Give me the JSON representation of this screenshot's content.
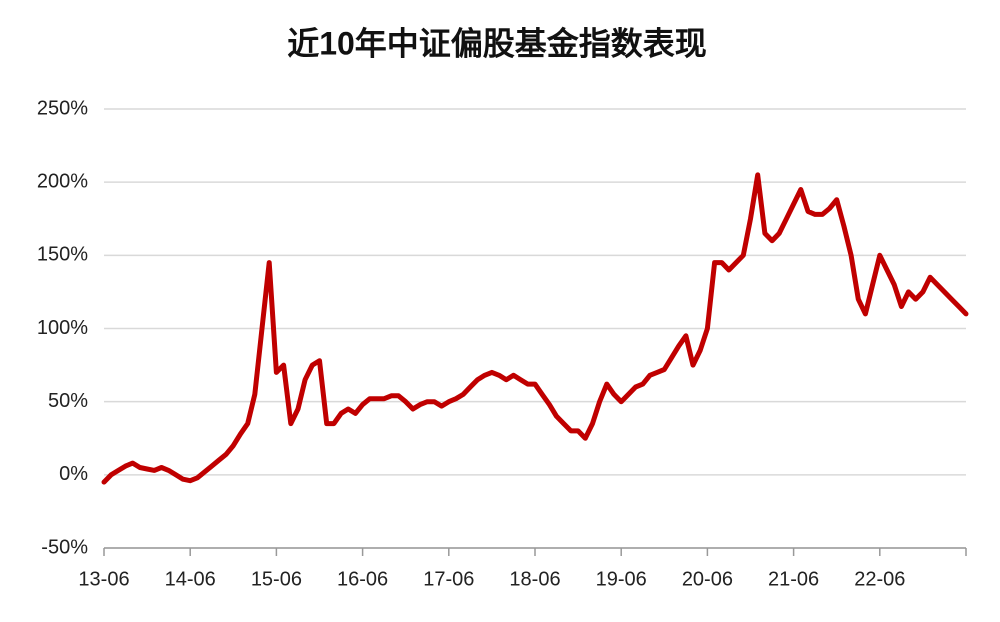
{
  "chart_data": {
    "type": "line",
    "title": "近10年中证偏股基金指数表现",
    "categories": [
      "13-06",
      null,
      null,
      null,
      null,
      null,
      null,
      null,
      null,
      null,
      null,
      null,
      "14-06",
      null,
      null,
      null,
      null,
      null,
      null,
      null,
      null,
      null,
      null,
      null,
      "15-06",
      null,
      null,
      null,
      null,
      null,
      null,
      null,
      null,
      null,
      null,
      null,
      "16-06",
      null,
      null,
      null,
      null,
      null,
      null,
      null,
      null,
      null,
      null,
      null,
      "17-06",
      null,
      null,
      null,
      null,
      null,
      null,
      null,
      null,
      null,
      null,
      null,
      "18-06",
      null,
      null,
      null,
      null,
      null,
      null,
      null,
      null,
      null,
      null,
      null,
      "19-06",
      null,
      null,
      null,
      null,
      null,
      null,
      null,
      null,
      null,
      null,
      null,
      "20-06",
      null,
      null,
      null,
      null,
      null,
      null,
      null,
      null,
      null,
      null,
      null,
      "21-06",
      null,
      null,
      null,
      null,
      null,
      null,
      null,
      null,
      null,
      null,
      null,
      "22-06",
      null,
      null,
      null,
      null,
      null,
      null,
      null,
      null,
      null,
      null,
      null,
      null
    ],
    "values": [
      -5,
      0,
      3,
      6,
      8,
      5,
      4,
      3,
      5,
      3,
      0,
      -3,
      -4,
      -2,
      2,
      6,
      10,
      14,
      20,
      28,
      35,
      55,
      100,
      145,
      70,
      75,
      35,
      45,
      65,
      75,
      78,
      35,
      35,
      42,
      45,
      42,
      48,
      52,
      52,
      52,
      54,
      54,
      50,
      45,
      48,
      50,
      50,
      47,
      50,
      52,
      55,
      60,
      65,
      68,
      70,
      68,
      65,
      68,
      65,
      62,
      62,
      55,
      48,
      40,
      35,
      30,
      30,
      25,
      35,
      50,
      62,
      55,
      50,
      55,
      60,
      62,
      68,
      70,
      72,
      80,
      88,
      95,
      75,
      85,
      100,
      145,
      145,
      140,
      145,
      150,
      175,
      205,
      165,
      160,
      165,
      175,
      185,
      195,
      180,
      178,
      178,
      182,
      188,
      170,
      150,
      120,
      110,
      130,
      150,
      140,
      130,
      115,
      125,
      120,
      125,
      135,
      130,
      125,
      120,
      115,
      110
    ],
    "color": "#c00000",
    "ylim": [
      -50,
      250
    ],
    "yticks": [
      {
        "value": -50,
        "label": "-50%"
      },
      {
        "value": 0,
        "label": "0%"
      },
      {
        "value": 50,
        "label": "50%"
      },
      {
        "value": 100,
        "label": "100%"
      },
      {
        "value": 150,
        "label": "150%"
      },
      {
        "value": 200,
        "label": "200%"
      },
      {
        "value": 250,
        "label": "250%"
      }
    ],
    "grid": true
  }
}
